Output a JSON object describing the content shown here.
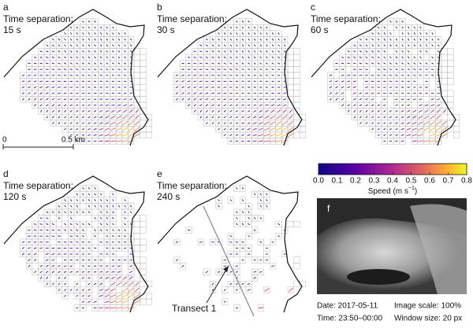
{
  "panels": [
    {
      "letter": "a",
      "label": "Time separation:",
      "interval": "15 s"
    },
    {
      "letter": "b",
      "label": "Time separation:",
      "interval": "30 s"
    },
    {
      "letter": "c",
      "label": "Time separation:",
      "interval": "60 s"
    },
    {
      "letter": "d",
      "label": "Time separation:",
      "interval": "120 s"
    },
    {
      "letter": "e",
      "label": "Time separation:",
      "interval": "240 s"
    }
  ],
  "scale_bar": {
    "start": "0",
    "end": "0.5 km"
  },
  "transect": "Transect 1",
  "colorbar": {
    "ticks": [
      "0.0",
      "0.1",
      "0.2",
      "0.3",
      "0.4",
      "0.5",
      "0.6",
      "0.7",
      "0.8"
    ],
    "label": "Speed (m s",
    "label_sup": "−1",
    "label_end": ")"
  },
  "photo": {
    "letter": "f"
  },
  "info": {
    "date": "Date: 2017-05-11",
    "time": "Time: 23:50–00:00",
    "image_scale": "Image scale: 100%",
    "window_size": "Window size: 20 px"
  }
}
